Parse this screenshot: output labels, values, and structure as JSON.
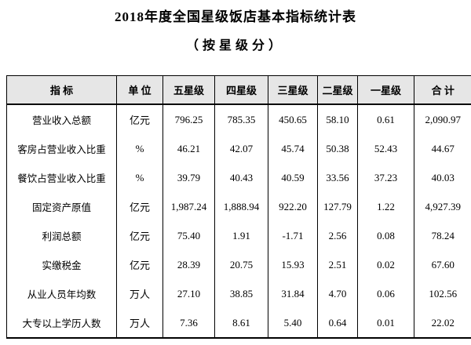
{
  "title": "2018年度全国星级饭店基本指标统计表",
  "subtitle": "（按星级分）",
  "colors": {
    "header_bg": "#e6e6e6",
    "border": "#000000",
    "text": "#000000",
    "page_bg": "#ffffff"
  },
  "table": {
    "headers": [
      "指 标",
      "单 位",
      "五星级",
      "四星级",
      "三星级",
      "二星级",
      "一星级",
      "合 计"
    ],
    "rows": [
      {
        "indicator": "营业收入总额",
        "unit": "亿元",
        "values": [
          "796.25",
          "785.35",
          "450.65",
          "58.10",
          "0.61",
          "2,090.97"
        ]
      },
      {
        "indicator": "客房占营业收入比重",
        "unit": "%",
        "values": [
          "46.21",
          "42.07",
          "45.74",
          "50.38",
          "52.43",
          "44.67"
        ]
      },
      {
        "indicator": "餐饮占营业收入比重",
        "unit": "%",
        "values": [
          "39.79",
          "40.43",
          "40.59",
          "33.56",
          "37.23",
          "40.03"
        ]
      },
      {
        "indicator": "固定资产原值",
        "unit": "亿元",
        "values": [
          "1,987.24",
          "1,888.94",
          "922.20",
          "127.79",
          "1.22",
          "4,927.39"
        ]
      },
      {
        "indicator": "利润总额",
        "unit": "亿元",
        "values": [
          "75.40",
          "1.91",
          "-1.71",
          "2.56",
          "0.08",
          "78.24"
        ]
      },
      {
        "indicator": "实缴税金",
        "unit": "亿元",
        "values": [
          "28.39",
          "20.75",
          "15.93",
          "2.51",
          "0.02",
          "67.60"
        ]
      },
      {
        "indicator": "从业人员年均数",
        "unit": "万人",
        "values": [
          "27.10",
          "38.85",
          "31.84",
          "4.70",
          "0.06",
          "102.56"
        ]
      },
      {
        "indicator": "大专以上学历人数",
        "unit": "万人",
        "values": [
          "7.36",
          "8.61",
          "5.40",
          "0.64",
          "0.01",
          "22.02"
        ]
      }
    ]
  }
}
